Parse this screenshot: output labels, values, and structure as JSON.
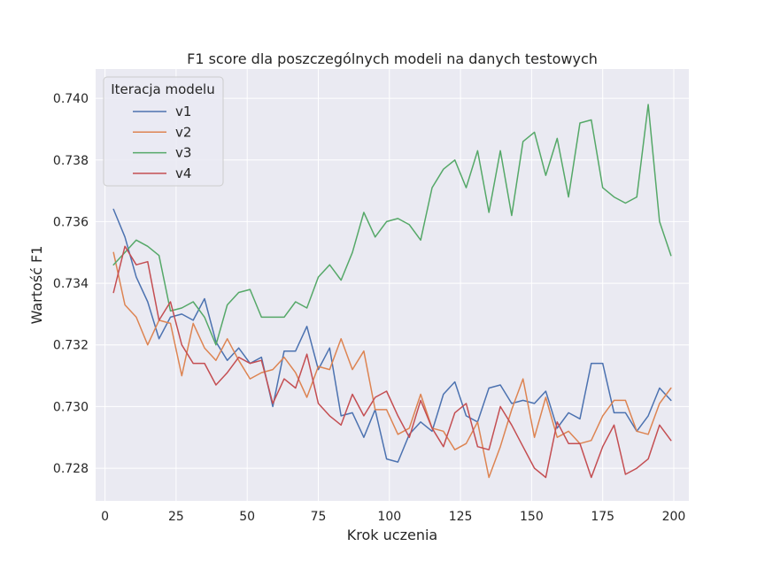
{
  "chart_data": {
    "type": "line",
    "title": "F1 score dla poszczególnych modeli na danych testowych",
    "xlabel": "Krok uczenia",
    "ylabel": "Wartość F1",
    "xlim": [
      -3.3,
      205.3
    ],
    "ylim": [
      0.72694,
      0.74095
    ],
    "xticks": [
      0,
      25,
      50,
      75,
      100,
      125,
      150,
      175,
      200
    ],
    "xtick_labels": [
      "0",
      "25",
      "50",
      "75",
      "100",
      "125",
      "150",
      "175",
      "200"
    ],
    "yticks": [
      0.728,
      0.73,
      0.732,
      0.734,
      0.736,
      0.738,
      0.74
    ],
    "ytick_labels": [
      "0.728",
      "0.730",
      "0.732",
      "0.734",
      "0.736",
      "0.738",
      "0.740"
    ],
    "grid": true,
    "legend": {
      "title": "Iteracja modelu",
      "position": "top-left"
    },
    "x": [
      3,
      7,
      11,
      15,
      19,
      23,
      27,
      31,
      35,
      39,
      43,
      47,
      51,
      55,
      59,
      63,
      67,
      71,
      75,
      79,
      83,
      87,
      91,
      95,
      99,
      103,
      107,
      111,
      115,
      119,
      123,
      127,
      131,
      135,
      139,
      143,
      147,
      151,
      155,
      159,
      163,
      167,
      171,
      175,
      179,
      183,
      187,
      191,
      195,
      199
    ],
    "series": [
      {
        "name": "v1",
        "color": "#4c72b0",
        "values": [
          0.7364,
          0.7355,
          0.7342,
          0.7334,
          0.7322,
          0.7329,
          0.733,
          0.7328,
          0.7335,
          0.7321,
          0.7315,
          0.7319,
          0.7314,
          0.7316,
          0.73,
          0.7318,
          0.7318,
          0.7326,
          0.7312,
          0.7319,
          0.7297,
          0.7298,
          0.729,
          0.7299,
          0.7283,
          0.7282,
          0.7291,
          0.7295,
          0.7292,
          0.7304,
          0.7308,
          0.7297,
          0.7295,
          0.7306,
          0.7307,
          0.7301,
          0.7302,
          0.7301,
          0.7305,
          0.7293,
          0.7298,
          0.7296,
          0.7314,
          0.7314,
          0.7298,
          0.7298,
          0.7292,
          0.7297,
          0.7306,
          0.7302
        ]
      },
      {
        "name": "v2",
        "color": "#dd8452",
        "values": [
          0.735,
          0.7333,
          0.7329,
          0.732,
          0.7328,
          0.7327,
          0.731,
          0.7327,
          0.7319,
          0.7315,
          0.7322,
          0.7315,
          0.7309,
          0.7311,
          0.7312,
          0.7316,
          0.7311,
          0.7303,
          0.7313,
          0.7312,
          0.7322,
          0.7312,
          0.7318,
          0.7299,
          0.7299,
          0.7291,
          0.7293,
          0.7304,
          0.7293,
          0.7292,
          0.7286,
          0.7288,
          0.7295,
          0.7277,
          0.7287,
          0.7299,
          0.7309,
          0.729,
          0.7303,
          0.729,
          0.7292,
          0.7288,
          0.7289,
          0.7297,
          0.7302,
          0.7302,
          0.7292,
          0.7291,
          0.7301,
          0.7306
        ]
      },
      {
        "name": "v3",
        "color": "#55a868",
        "values": [
          0.7346,
          0.735,
          0.7354,
          0.7352,
          0.7349,
          0.7331,
          0.7332,
          0.7334,
          0.7329,
          0.732,
          0.7333,
          0.7337,
          0.7338,
          0.7329,
          0.7329,
          0.7329,
          0.7334,
          0.7332,
          0.7342,
          0.7346,
          0.7341,
          0.735,
          0.7363,
          0.7355,
          0.736,
          0.7361,
          0.7359,
          0.7354,
          0.7371,
          0.7377,
          0.738,
          0.7371,
          0.7383,
          0.7363,
          0.7383,
          0.7362,
          0.7386,
          0.7389,
          0.7375,
          0.7387,
          0.7368,
          0.7392,
          0.7393,
          0.7371,
          0.7368,
          0.7366,
          0.7368,
          0.7398,
          0.736,
          0.7349
        ]
      },
      {
        "name": "v4",
        "color": "#c44e52",
        "values": [
          0.7337,
          0.7352,
          0.7346,
          0.7347,
          0.7328,
          0.7334,
          0.732,
          0.7314,
          0.7314,
          0.7307,
          0.7311,
          0.7316,
          0.7314,
          0.7315,
          0.7301,
          0.7309,
          0.7306,
          0.7317,
          0.7301,
          0.7297,
          0.7294,
          0.7304,
          0.7297,
          0.7303,
          0.7305,
          0.7297,
          0.729,
          0.7302,
          0.7293,
          0.7287,
          0.7298,
          0.7301,
          0.7287,
          0.7286,
          0.73,
          0.7294,
          0.7287,
          0.728,
          0.7277,
          0.7295,
          0.7288,
          0.7288,
          0.7277,
          0.7287,
          0.7294,
          0.7278,
          0.728,
          0.7283,
          0.7294,
          0.7289
        ]
      }
    ]
  }
}
